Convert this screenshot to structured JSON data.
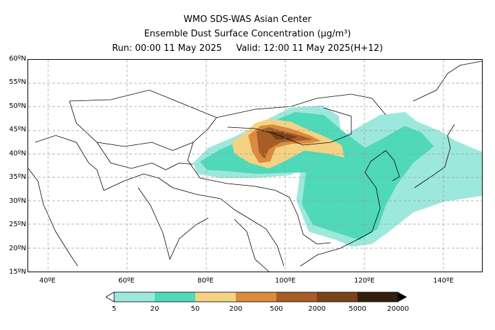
{
  "title": {
    "line1": "WMO SDS-WAS Asian Center",
    "line2": "Ensemble Dust Surface Concentration (μg/m³)",
    "line3": "Run: 00:00 11 May 2025     Valid: 12:00 11 May 2025(H+12)"
  },
  "map": {
    "lat_labels": [
      "60ºN",
      "55ºN",
      "50ºN",
      "45ºN",
      "40ºN",
      "35ºN",
      "30ºN",
      "25ºN",
      "20ºN",
      "15ºN"
    ],
    "lon_labels": [
      "40ºE",
      "60ºE",
      "80ºE",
      "100ºE",
      "120ºE",
      "140ºE"
    ],
    "lat_range": [
      15,
      60
    ],
    "lon_range": [
      35,
      150
    ],
    "gridlines": "dashed"
  },
  "legend": {
    "labels": [
      "5",
      "20",
      "50",
      "200",
      "500",
      "2000",
      "5000",
      "20000"
    ],
    "colors": [
      "#9de8dc",
      "#4fd9b8",
      "#f3d383",
      "#dc8a3e",
      "#a75d27",
      "#7a4217",
      "#321e0c"
    ],
    "extend": "both"
  }
}
